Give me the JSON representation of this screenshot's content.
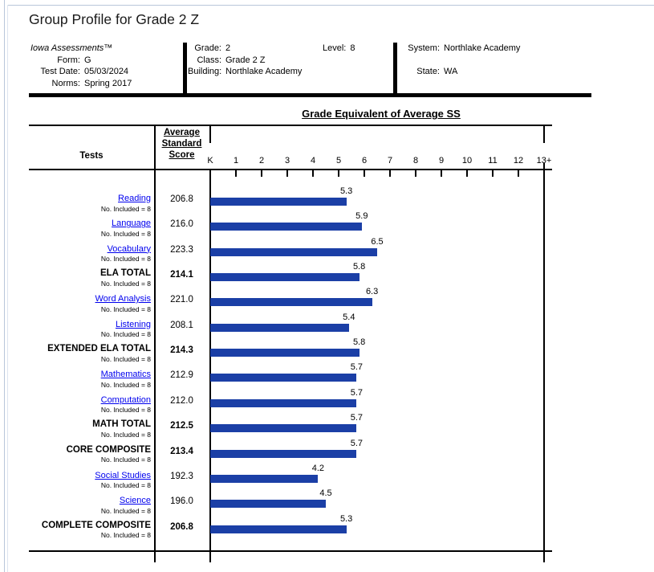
{
  "page": {
    "title": "Group Profile for Grade 2 Z"
  },
  "header": {
    "col1": {
      "product": "Iowa Assessments™",
      "rows": [
        {
          "label": "Form:",
          "value": "G"
        },
        {
          "label": "Test Date:",
          "value": "05/03/2024"
        },
        {
          "label": "Norms:",
          "value": "Spring 2017"
        }
      ]
    },
    "col2": {
      "rows": [
        {
          "label": "Grade:",
          "value": "2"
        },
        {
          "label": "Class:",
          "value": "Grade 2 Z"
        },
        {
          "label": "Building:",
          "value": "Northlake Academy"
        }
      ],
      "level_label": "Level:",
      "level_value": "8"
    },
    "col3": {
      "rows": [
        {
          "label": "System:",
          "value": "Northlake Academy"
        },
        {
          "label": "State:",
          "value": "WA"
        }
      ]
    }
  },
  "table": {
    "tests_header": "Tests",
    "score_header_lines": [
      "Average",
      "Standard",
      "Score"
    ],
    "chart_title": "Grade Equivalent of Average SS",
    "axis_labels": [
      "K",
      "1",
      "2",
      "3",
      "4",
      "5",
      "6",
      "7",
      "8",
      "9",
      "10",
      "11",
      "12",
      "13+"
    ],
    "no_included": "No. Included = 8",
    "rows": [
      {
        "name": "Reading",
        "type": "link",
        "score": "206.8",
        "ge": 5.3,
        "ge_label": "5.3"
      },
      {
        "name": "Language",
        "type": "link",
        "score": "216.0",
        "ge": 5.9,
        "ge_label": "5.9"
      },
      {
        "name": "Vocabulary",
        "type": "link",
        "score": "223.3",
        "ge": 6.5,
        "ge_label": "6.5"
      },
      {
        "name": "ELA TOTAL",
        "type": "total",
        "score": "214.1",
        "ge": 5.8,
        "ge_label": "5.8"
      },
      {
        "name": "Word Analysis",
        "type": "link",
        "score": "221.0",
        "ge": 6.3,
        "ge_label": "6.3"
      },
      {
        "name": "Listening",
        "type": "link",
        "score": "208.1",
        "ge": 5.4,
        "ge_label": "5.4"
      },
      {
        "name": "EXTENDED ELA TOTAL",
        "type": "total",
        "score": "214.3",
        "ge": 5.8,
        "ge_label": "5.8"
      },
      {
        "name": "Mathematics",
        "type": "link",
        "score": "212.9",
        "ge": 5.7,
        "ge_label": "5.7"
      },
      {
        "name": "Computation",
        "type": "link",
        "score": "212.0",
        "ge": 5.7,
        "ge_label": "5.7"
      },
      {
        "name": "MATH TOTAL",
        "type": "total",
        "score": "212.5",
        "ge": 5.7,
        "ge_label": "5.7"
      },
      {
        "name": "CORE COMPOSITE",
        "type": "total",
        "score": "213.4",
        "ge": 5.7,
        "ge_label": "5.7"
      },
      {
        "name": "Social Studies",
        "type": "link",
        "score": "192.3",
        "ge": 4.2,
        "ge_label": "4.2"
      },
      {
        "name": "Science",
        "type": "link",
        "score": "196.0",
        "ge": 4.5,
        "ge_label": "4.5"
      },
      {
        "name": "COMPLETE COMPOSITE",
        "type": "total",
        "score": "206.8",
        "ge": 5.3,
        "ge_label": "5.3"
      }
    ]
  },
  "colors": {
    "bar": "#1B3FA6",
    "link": "#0000EE",
    "line": "#000000"
  },
  "chart_data": {
    "type": "bar",
    "orientation": "horizontal",
    "title": "Grade Equivalent of Average SS",
    "categories": [
      "Reading",
      "Language",
      "Vocabulary",
      "ELA TOTAL",
      "Word Analysis",
      "Listening",
      "EXTENDED ELA TOTAL",
      "Mathematics",
      "Computation",
      "MATH TOTAL",
      "CORE COMPOSITE",
      "Social Studies",
      "Science",
      "COMPLETE COMPOSITE"
    ],
    "series": [
      {
        "name": "Average Standard Score",
        "values": [
          206.8,
          216.0,
          223.3,
          214.1,
          221.0,
          208.1,
          214.3,
          212.9,
          212.0,
          212.5,
          213.4,
          192.3,
          196.0,
          206.8
        ]
      },
      {
        "name": "Grade Equivalent of Average SS",
        "values": [
          5.3,
          5.9,
          6.5,
          5.8,
          6.3,
          5.4,
          5.8,
          5.7,
          5.7,
          5.7,
          5.7,
          4.2,
          4.5,
          5.3
        ]
      }
    ],
    "n_included_per_test": 8,
    "xlabel": "Grade Equivalent",
    "x_axis_tick_labels": [
      "K",
      "1",
      "2",
      "3",
      "4",
      "5",
      "6",
      "7",
      "8",
      "9",
      "10",
      "11",
      "12",
      "13+"
    ],
    "xlim_units": [
      0,
      13
    ],
    "grid": false,
    "legend": false,
    "bar_color": "#1B3FA6"
  }
}
